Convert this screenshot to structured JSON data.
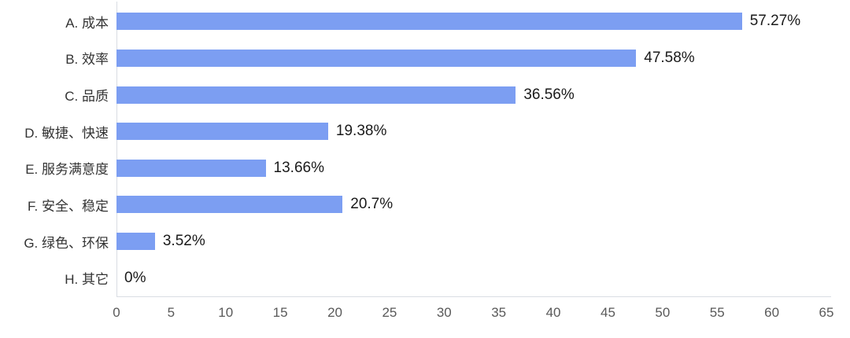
{
  "chart_data": {
    "type": "bar",
    "orientation": "horizontal",
    "title": "",
    "categories": [
      "A. 成本",
      "B. 效率",
      "C. 品质",
      "D. 敏捷、快速",
      "E. 服务满意度",
      "F. 安全、稳定",
      "G. 绿色、环保",
      "H. 其它"
    ],
    "values": [
      57.27,
      47.58,
      36.56,
      19.38,
      13.66,
      20.7,
      3.52,
      0
    ],
    "value_labels": [
      "57.27%",
      "47.58%",
      "36.56%",
      "19.38%",
      "13.66%",
      "20.7%",
      "3.52%",
      "0%"
    ],
    "x_ticks": [
      0,
      5,
      10,
      15,
      20,
      25,
      30,
      35,
      40,
      45,
      50,
      55,
      60,
      65
    ],
    "xlim": [
      0,
      65
    ],
    "grid": false,
    "legend": false,
    "colors": {
      "bar": "#7c9ef2",
      "axis_line": "#d9dde3",
      "category_label": "#333333",
      "value_label": "#1a1a1a",
      "tick_label": "#595959"
    }
  }
}
